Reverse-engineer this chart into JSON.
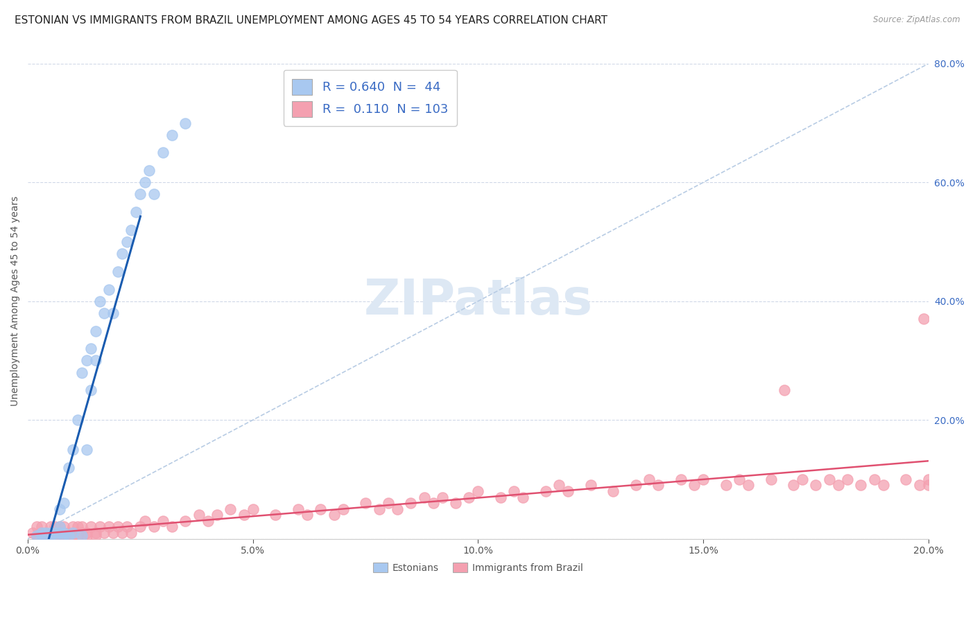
{
  "title": "ESTONIAN VS IMMIGRANTS FROM BRAZIL UNEMPLOYMENT AMONG AGES 45 TO 54 YEARS CORRELATION CHART",
  "source": "Source: ZipAtlas.com",
  "ylabel": "Unemployment Among Ages 45 to 54 years",
  "xlim": [
    0.0,
    0.2
  ],
  "ylim": [
    0.0,
    0.8
  ],
  "xticks": [
    0.0,
    0.05,
    0.1,
    0.15,
    0.2
  ],
  "yticks": [
    0.0,
    0.2,
    0.4,
    0.6,
    0.8
  ],
  "xticklabels": [
    "0.0%",
    "5.0%",
    "10.0%",
    "15.0%",
    "20.0%"
  ],
  "yticklabels": [
    "",
    "20.0%",
    "40.0%",
    "60.0%",
    "80.0%"
  ],
  "legend_r_estonian": "0.640",
  "legend_n_estonian": "44",
  "legend_r_brazil": "0.110",
  "legend_n_brazil": "103",
  "estonian_color": "#a8c8f0",
  "brazil_color": "#f4a0b0",
  "trendline_estonian_color": "#1a5cb0",
  "trendline_brazil_color": "#e05070",
  "diagonal_color": "#b8cce4",
  "background_color": "#ffffff",
  "grid_color": "#d0d8e8",
  "watermark_color": "#dde8f4",
  "watermark_text": "ZIPatlas",
  "title_fontsize": 11,
  "label_fontsize": 10,
  "tick_fontsize": 10,
  "legend_fontsize": 13,
  "tick_color": "#3a6bc4",
  "estonian_points_x": [
    0.002,
    0.003,
    0.003,
    0.004,
    0.004,
    0.005,
    0.005,
    0.006,
    0.006,
    0.007,
    0.007,
    0.007,
    0.008,
    0.008,
    0.008,
    0.009,
    0.009,
    0.01,
    0.01,
    0.011,
    0.012,
    0.012,
    0.013,
    0.013,
    0.014,
    0.014,
    0.015,
    0.015,
    0.016,
    0.017,
    0.018,
    0.019,
    0.02,
    0.021,
    0.022,
    0.023,
    0.024,
    0.025,
    0.026,
    0.027,
    0.028,
    0.03,
    0.032,
    0.035
  ],
  "estonian_points_y": [
    0.005,
    0.01,
    0.005,
    0.01,
    0.005,
    0.01,
    0.005,
    0.01,
    0.005,
    0.02,
    0.05,
    0.01,
    0.06,
    0.01,
    0.005,
    0.12,
    0.005,
    0.15,
    0.01,
    0.2,
    0.28,
    0.005,
    0.3,
    0.15,
    0.32,
    0.25,
    0.35,
    0.3,
    0.4,
    0.38,
    0.42,
    0.38,
    0.45,
    0.48,
    0.5,
    0.52,
    0.55,
    0.58,
    0.6,
    0.62,
    0.58,
    0.65,
    0.68,
    0.7
  ],
  "brazil_points_x": [
    0.001,
    0.002,
    0.002,
    0.003,
    0.003,
    0.003,
    0.004,
    0.004,
    0.005,
    0.005,
    0.005,
    0.006,
    0.006,
    0.006,
    0.007,
    0.007,
    0.007,
    0.008,
    0.008,
    0.009,
    0.009,
    0.01,
    0.01,
    0.01,
    0.011,
    0.011,
    0.012,
    0.012,
    0.013,
    0.013,
    0.014,
    0.015,
    0.015,
    0.016,
    0.017,
    0.018,
    0.019,
    0.02,
    0.021,
    0.022,
    0.023,
    0.025,
    0.026,
    0.028,
    0.03,
    0.032,
    0.035,
    0.038,
    0.04,
    0.042,
    0.045,
    0.048,
    0.05,
    0.055,
    0.06,
    0.062,
    0.065,
    0.068,
    0.07,
    0.075,
    0.078,
    0.08,
    0.082,
    0.085,
    0.088,
    0.09,
    0.092,
    0.095,
    0.098,
    0.1,
    0.105,
    0.108,
    0.11,
    0.115,
    0.118,
    0.12,
    0.125,
    0.13,
    0.135,
    0.138,
    0.14,
    0.145,
    0.148,
    0.15,
    0.155,
    0.158,
    0.16,
    0.165,
    0.168,
    0.17,
    0.172,
    0.175,
    0.178,
    0.18,
    0.182,
    0.185,
    0.188,
    0.19,
    0.195,
    0.198,
    0.199,
    0.2,
    0.2
  ],
  "brazil_points_y": [
    0.01,
    0.02,
    0.005,
    0.01,
    0.02,
    0.005,
    0.01,
    0.005,
    0.02,
    0.01,
    0.005,
    0.02,
    0.01,
    0.005,
    0.02,
    0.01,
    0.005,
    0.02,
    0.005,
    0.01,
    0.005,
    0.02,
    0.01,
    0.005,
    0.02,
    0.005,
    0.01,
    0.02,
    0.01,
    0.005,
    0.02,
    0.01,
    0.005,
    0.02,
    0.01,
    0.02,
    0.01,
    0.02,
    0.01,
    0.02,
    0.01,
    0.02,
    0.03,
    0.02,
    0.03,
    0.02,
    0.03,
    0.04,
    0.03,
    0.04,
    0.05,
    0.04,
    0.05,
    0.04,
    0.05,
    0.04,
    0.05,
    0.04,
    0.05,
    0.06,
    0.05,
    0.06,
    0.05,
    0.06,
    0.07,
    0.06,
    0.07,
    0.06,
    0.07,
    0.08,
    0.07,
    0.08,
    0.07,
    0.08,
    0.09,
    0.08,
    0.09,
    0.08,
    0.09,
    0.1,
    0.09,
    0.1,
    0.09,
    0.1,
    0.09,
    0.1,
    0.09,
    0.1,
    0.25,
    0.09,
    0.1,
    0.09,
    0.1,
    0.09,
    0.1,
    0.09,
    0.1,
    0.09,
    0.1,
    0.09,
    0.37,
    0.09,
    0.1
  ]
}
